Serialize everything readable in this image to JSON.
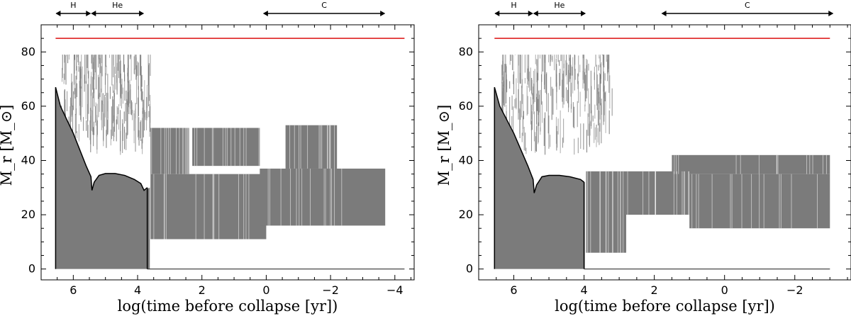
{
  "chart_data": [
    {
      "type": "area",
      "panel": "left",
      "xlabel": "log(time before collapse [yr])",
      "ylabel": "M_r [M_⊙]",
      "xlim": [
        7.0,
        -4.6
      ],
      "ylim": [
        -4,
        90
      ],
      "xticks": [
        6,
        4,
        2,
        0,
        -2,
        -4
      ],
      "xtick_labels": [
        "6",
        "4",
        "2",
        "0",
        "−2",
        "−4"
      ],
      "yticks": [
        0,
        20,
        40,
        60,
        80
      ],
      "ytick_labels": [
        "0",
        "20",
        "40",
        "60",
        "80"
      ],
      "phases": [
        {
          "label": "H",
          "from": 6.55,
          "to": 5.45
        },
        {
          "label": "He",
          "from": 5.45,
          "to": 3.8
        },
        {
          "label": "C",
          "from": 0.1,
          "to": -3.7
        }
      ],
      "total_mass": {
        "value": 85,
        "from": 6.55,
        "to": -4.3,
        "color": "#e03030"
      },
      "core_boundary": [
        [
          6.55,
          67
        ],
        [
          6.4,
          60
        ],
        [
          6.2,
          55
        ],
        [
          6.0,
          50
        ],
        [
          5.8,
          44
        ],
        [
          5.6,
          38
        ],
        [
          5.45,
          34
        ],
        [
          5.42,
          29
        ],
        [
          5.35,
          32
        ],
        [
          5.2,
          34.5
        ],
        [
          5.0,
          35.2
        ],
        [
          4.7,
          35.2
        ],
        [
          4.4,
          34.5
        ],
        [
          4.1,
          33
        ],
        [
          3.9,
          31.5
        ],
        [
          3.8,
          29
        ],
        [
          3.7,
          30
        ]
      ],
      "convective_zones": [
        {
          "x0": 6.55,
          "x1": 3.62,
          "y0": 0,
          "y_top": [
            [
              6.55,
              67
            ],
            [
              6.4,
              60
            ],
            [
              6.2,
              55
            ],
            [
              6.0,
              50
            ],
            [
              5.8,
              44
            ],
            [
              5.6,
              38
            ],
            [
              5.45,
              34
            ],
            [
              5.42,
              29
            ],
            [
              5.35,
              32
            ],
            [
              5.2,
              34.5
            ],
            [
              5.0,
              35.2
            ],
            [
              4.7,
              35.2
            ],
            [
              4.4,
              34.5
            ],
            [
              4.1,
              33
            ],
            [
              3.9,
              31.5
            ],
            [
              3.8,
              29
            ],
            [
              3.62,
              30
            ]
          ]
        },
        {
          "x0": 3.6,
          "x1": 0.0,
          "y0": 11,
          "y1": 35
        },
        {
          "x0": 3.6,
          "x1": 2.4,
          "y0": 35,
          "y1": 52
        },
        {
          "x0": 2.3,
          "x1": 0.2,
          "y0": 38,
          "y1": 52
        },
        {
          "x0": 0.2,
          "x1": -3.7,
          "y0": 16,
          "y1": 37
        },
        {
          "x0": -0.6,
          "x1": -2.2,
          "y0": 37,
          "y1": 53
        }
      ],
      "scatter_region": {
        "x0": 6.4,
        "x1": 3.6,
        "y_lo": 42,
        "y_hi": 79
      },
      "colors": {
        "zone": "#7b7b7b",
        "boundary": "#000000",
        "total_mass": "#e03030"
      }
    },
    {
      "type": "area",
      "panel": "right",
      "xlabel": "log(time before collapse [yr])",
      "ylabel": "M_r [M_⊙]",
      "xlim": [
        7.0,
        -3.6
      ],
      "ylim": [
        -4,
        90
      ],
      "xticks": [
        6,
        4,
        2,
        0,
        -2
      ],
      "xtick_labels": [
        "6",
        "4",
        "2",
        "0",
        "−2"
      ],
      "yticks": [
        0,
        20,
        40,
        60,
        80
      ],
      "ytick_labels": [
        "0",
        "20",
        "40",
        "60",
        "80"
      ],
      "phases": [
        {
          "label": "H",
          "from": 6.55,
          "to": 5.45
        },
        {
          "label": "He",
          "from": 5.45,
          "to": 3.95
        },
        {
          "label": "C",
          "from": 1.8,
          "to": -3.1
        }
      ],
      "total_mass": {
        "value": 85,
        "from": 6.55,
        "to": -3.0,
        "color": "#e03030"
      },
      "core_boundary": [
        [
          6.55,
          67
        ],
        [
          6.4,
          60
        ],
        [
          6.2,
          55
        ],
        [
          6.0,
          50
        ],
        [
          5.8,
          44
        ],
        [
          5.6,
          38
        ],
        [
          5.45,
          33
        ],
        [
          5.42,
          28
        ],
        [
          5.35,
          31
        ],
        [
          5.2,
          34
        ],
        [
          5.0,
          34.5
        ],
        [
          4.7,
          34.5
        ],
        [
          4.4,
          34
        ],
        [
          4.1,
          33
        ],
        [
          4.0,
          32
        ]
      ],
      "convective_zones": [
        {
          "x0": 6.55,
          "x1": 3.98,
          "y0": 0,
          "y_top": [
            [
              6.55,
              67
            ],
            [
              6.4,
              60
            ],
            [
              6.2,
              55
            ],
            [
              6.0,
              50
            ],
            [
              5.8,
              44
            ],
            [
              5.6,
              38
            ],
            [
              5.45,
              33
            ],
            [
              5.42,
              28
            ],
            [
              5.35,
              31
            ],
            [
              5.2,
              34
            ],
            [
              5.0,
              34.5
            ],
            [
              4.7,
              34.5
            ],
            [
              4.4,
              34
            ],
            [
              4.1,
              33
            ],
            [
              3.98,
              32
            ]
          ]
        },
        {
          "x0": 3.95,
          "x1": 2.8,
          "y0": 6,
          "y1": 36
        },
        {
          "x0": 2.8,
          "x1": 1.0,
          "y0": 20,
          "y1": 36
        },
        {
          "x0": 1.0,
          "x1": -3.0,
          "y0": 15,
          "y1": 35
        },
        {
          "x0": 1.5,
          "x1": -3.0,
          "y0": 35,
          "y1": 42
        }
      ],
      "scatter_region": {
        "x0": 6.4,
        "x1": 3.2,
        "y_lo": 42,
        "y_hi": 79
      },
      "colors": {
        "zone": "#7b7b7b",
        "boundary": "#000000",
        "total_mass": "#e03030"
      }
    }
  ]
}
